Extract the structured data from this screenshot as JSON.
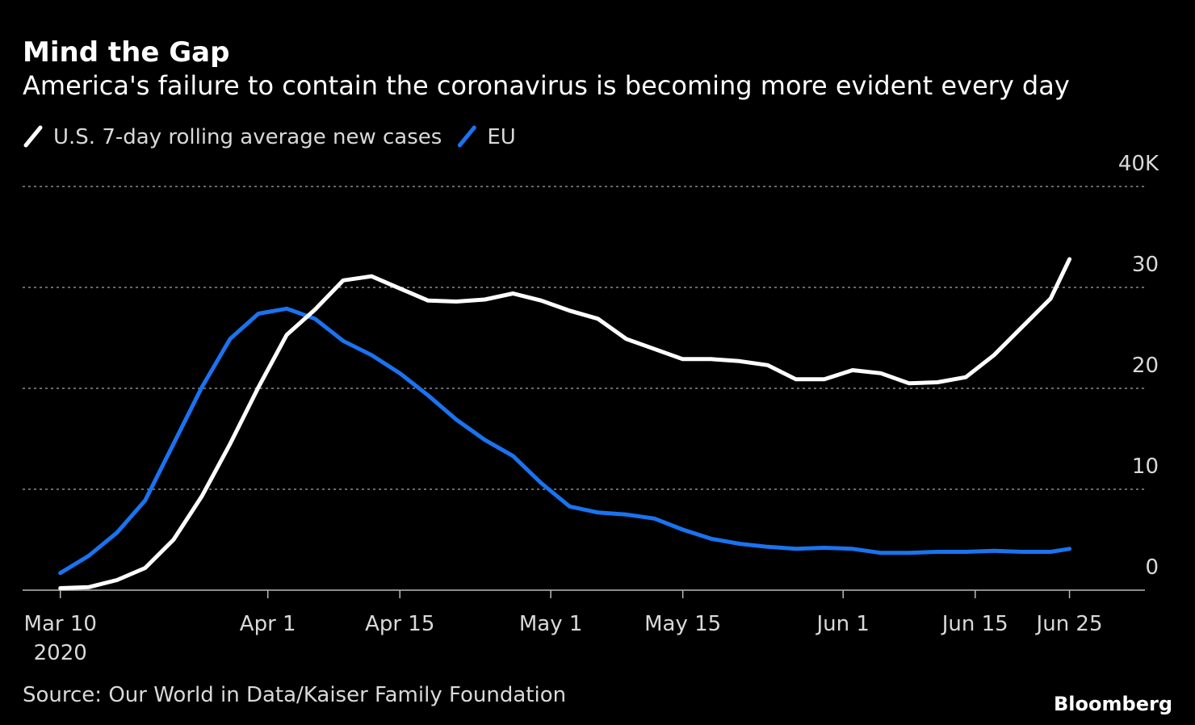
{
  "chart_data": {
    "type": "line",
    "title": "Mind the Gap",
    "subtitle": "America's failure to contain the coronavirus is becoming more evident every day",
    "source": "Source: Our World in Data/Kaiser Family Foundation",
    "brand": "Bloomberg",
    "x": [
      "2020-03-10",
      "2020-03-13",
      "2020-03-16",
      "2020-03-19",
      "2020-03-22",
      "2020-03-25",
      "2020-03-28",
      "2020-03-31",
      "2020-04-03",
      "2020-04-06",
      "2020-04-09",
      "2020-04-12",
      "2020-04-15",
      "2020-04-18",
      "2020-04-21",
      "2020-04-24",
      "2020-04-27",
      "2020-04-30",
      "2020-05-03",
      "2020-05-06",
      "2020-05-09",
      "2020-05-12",
      "2020-05-15",
      "2020-05-18",
      "2020-05-21",
      "2020-05-24",
      "2020-05-27",
      "2020-05-30",
      "2020-06-02",
      "2020-06-05",
      "2020-06-08",
      "2020-06-11",
      "2020-06-14",
      "2020-06-17",
      "2020-06-20",
      "2020-06-23",
      "2020-06-25"
    ],
    "series": [
      {
        "name": "U.S. 7-day rolling average new cases",
        "color": "#ffffff",
        "values": [
          0.2,
          0.3,
          1.0,
          2.2,
          5.0,
          9.3,
          14.5,
          20.1,
          25.3,
          27.8,
          30.7,
          31.1,
          29.9,
          28.7,
          28.6,
          28.8,
          29.4,
          28.7,
          27.7,
          26.9,
          24.9,
          23.9,
          22.9,
          22.9,
          22.7,
          22.3,
          20.9,
          20.9,
          21.8,
          21.5,
          20.5,
          20.6,
          21.1,
          23.3,
          26.1,
          28.9,
          32.8
        ]
      },
      {
        "name": "EU",
        "color": "#1a73f0",
        "values": [
          1.7,
          3.4,
          5.7,
          8.9,
          14.5,
          20.1,
          24.9,
          27.4,
          27.9,
          26.9,
          24.7,
          23.3,
          21.5,
          19.3,
          16.9,
          14.9,
          13.3,
          10.6,
          8.3,
          7.7,
          7.5,
          7.1,
          6.0,
          5.1,
          4.6,
          4.3,
          4.1,
          4.2,
          4.1,
          3.7,
          3.7,
          3.8,
          3.8,
          3.9,
          3.8,
          3.8,
          4.1
        ]
      }
    ],
    "xlim": [
      "2020-03-06",
      "2020-07-03"
    ],
    "xticks": [
      {
        "value": "2020-03-10",
        "label": "Mar 10"
      },
      {
        "value": "2020-04-01",
        "label": "Apr 1"
      },
      {
        "value": "2020-04-15",
        "label": "Apr 15"
      },
      {
        "value": "2020-05-01",
        "label": "May 1"
      },
      {
        "value": "2020-05-15",
        "label": "May 15"
      },
      {
        "value": "2020-06-01",
        "label": "Jun 1"
      },
      {
        "value": "2020-06-15",
        "label": "Jun 15"
      },
      {
        "value": "2020-06-25",
        "label": "Jun 25"
      }
    ],
    "xtick_year": "2020",
    "ylim": [
      0,
      40
    ],
    "yticks": [
      0,
      10,
      20,
      30,
      {
        "value": 40,
        "label": "40K"
      }
    ],
    "grid": true
  }
}
